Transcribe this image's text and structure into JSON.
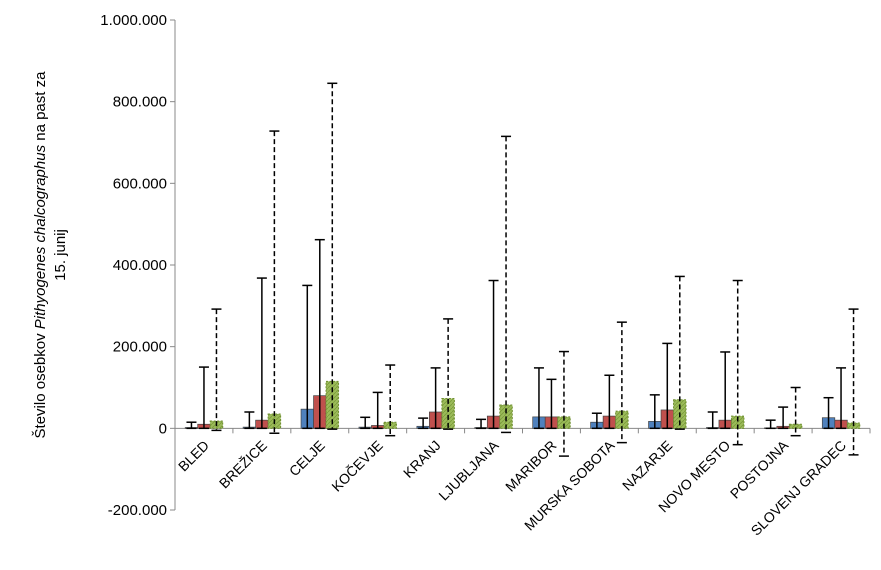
{
  "chart_data": {
    "type": "bar",
    "categories": [
      "BLED",
      "BREŽICE",
      "CELJE",
      "KOČEVJE",
      "KRANJ",
      "LJUBLJANA",
      "MARIBOR",
      "MURSKA SOBOTA",
      "NAZARJE",
      "NOVO MESTO",
      "POSTOJNA",
      "SLOVENJ GRADEC"
    ],
    "series": [
      {
        "color": "#4F81BD",
        "values": [
          2000,
          3000,
          47000,
          3000,
          5000,
          2000,
          28000,
          15000,
          17000,
          2000,
          1000,
          26000
        ],
        "error_upper": [
          15000,
          40000,
          350000,
          27000,
          25000,
          22000,
          148000,
          37000,
          82000,
          40000,
          20000,
          75000
        ],
        "error_lower": [
          0,
          0,
          0,
          0,
          0,
          0,
          0,
          0,
          0,
          0,
          0,
          0
        ],
        "error_style": "solid"
      },
      {
        "color": "#C0504D",
        "values": [
          10000,
          20000,
          80000,
          7000,
          40000,
          30000,
          28000,
          30000,
          45000,
          20000,
          5000,
          20000
        ],
        "error_upper": [
          150000,
          368000,
          462000,
          88000,
          148000,
          362000,
          120000,
          130000,
          208000,
          187000,
          52000,
          148000
        ],
        "error_lower": [
          0,
          0,
          0,
          0,
          0,
          0,
          0,
          0,
          0,
          0,
          0,
          0
        ],
        "error_style": "solid"
      },
      {
        "color": "#9BBB59",
        "hatched": true,
        "values": [
          18000,
          35000,
          115000,
          15000,
          73000,
          57000,
          28000,
          42000,
          70000,
          30000,
          10000,
          13000
        ],
        "error_upper": [
          292000,
          728000,
          845000,
          155000,
          268000,
          715000,
          188000,
          260000,
          372000,
          362000,
          100000,
          292000
        ],
        "error_lower": [
          -5000,
          -12000,
          -2000,
          -18000,
          -2000,
          -10000,
          -68000,
          -35000,
          -2000,
          -40000,
          -18000,
          -65000
        ],
        "error_style": "dashed"
      }
    ],
    "ylabel_lines": [
      "Število osebkov Pithyogenes chalcographus na past za",
      "15. junij"
    ],
    "ylabel_italic": "Pithyogenes chalcographus",
    "ylim": [
      -200000,
      1000000
    ],
    "yticks": [
      -200000,
      0,
      200000,
      400000,
      600000,
      800000,
      1000000
    ],
    "ytick_labels": [
      "-200.000",
      "0",
      "200.000",
      "400.000",
      "600.000",
      "800.000",
      "1.000.000"
    ],
    "grid": false,
    "legend": "none"
  }
}
